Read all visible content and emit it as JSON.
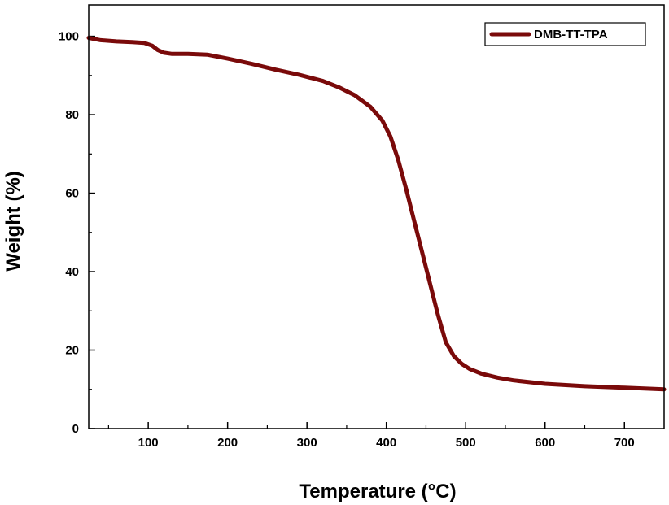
{
  "chart_data": {
    "type": "line",
    "title": "",
    "xlabel": "Temperature (°C)",
    "ylabel": "Weight (%)",
    "xlim": [
      25,
      750
    ],
    "ylim": [
      0,
      108
    ],
    "xticks": [
      100,
      200,
      300,
      400,
      500,
      600,
      700
    ],
    "yticks": [
      0,
      20,
      40,
      60,
      80,
      100
    ],
    "grid": false,
    "legend_position": "top-right",
    "series": [
      {
        "name": "DMB-TT-TPA",
        "color": "#7a0a0a",
        "x": [
          25,
          40,
          60,
          80,
          95,
          105,
          112,
          120,
          130,
          150,
          175,
          200,
          230,
          260,
          290,
          320,
          340,
          360,
          380,
          395,
          405,
          415,
          425,
          435,
          445,
          455,
          465,
          475,
          485,
          495,
          505,
          520,
          540,
          560,
          600,
          650,
          700,
          750
        ],
        "y": [
          99.6,
          99.0,
          98.7,
          98.5,
          98.3,
          97.6,
          96.5,
          95.8,
          95.5,
          95.5,
          95.3,
          94.3,
          93.0,
          91.5,
          90.2,
          88.6,
          87.0,
          85.0,
          82.0,
          78.5,
          74.5,
          68.5,
          61.0,
          53.0,
          45.0,
          37.0,
          29.0,
          22.0,
          18.5,
          16.5,
          15.2,
          14.0,
          13.0,
          12.3,
          11.4,
          10.8,
          10.4,
          10.0
        ]
      }
    ]
  }
}
